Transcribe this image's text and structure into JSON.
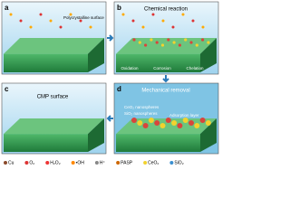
{
  "panels": [
    {
      "label": "a",
      "caption": "Polycrystalline surface"
    },
    {
      "label": "b",
      "caption": "Chemical reaction",
      "notes": [
        "Oxidation",
        "Corrosion",
        "Chelation"
      ]
    },
    {
      "label": "c",
      "caption": "CMP surface"
    },
    {
      "label": "d",
      "caption": "Mechanical removal",
      "notes": [
        "CeO₂ nanospheres",
        "SiO₂ nanospheres",
        "Adsorption layer"
      ]
    }
  ],
  "legend": [
    "Cu",
    "O₂",
    "H₂O₂",
    "•OH",
    "H⁺",
    "PASP",
    "CeO₂",
    "SiO₂"
  ]
}
